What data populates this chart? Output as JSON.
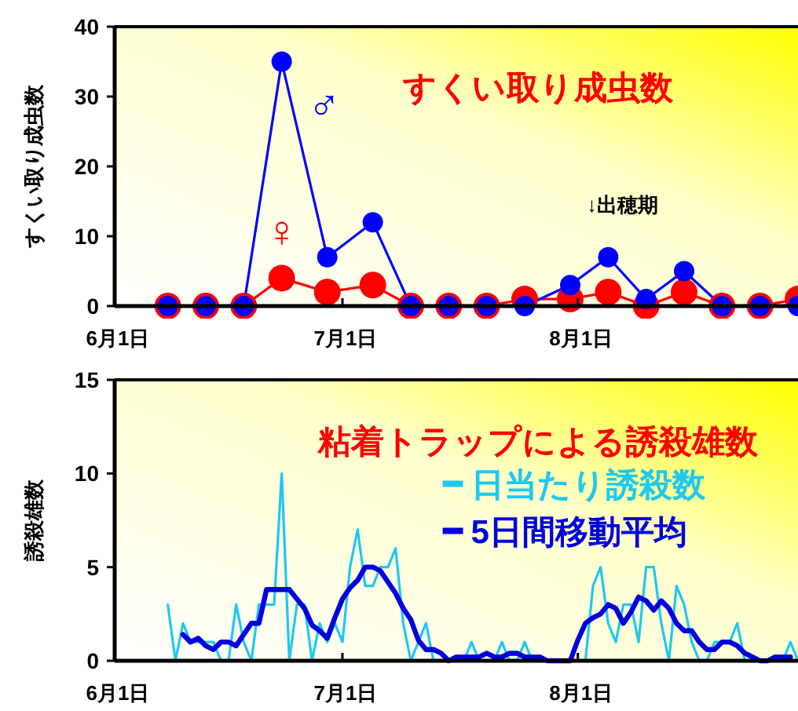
{
  "chart_data": [
    {
      "type": "line",
      "title": "すくい取り成虫数",
      "ylabel": "すくい取り成虫数",
      "marker": "circle",
      "line_style": "solid",
      "x": [
        "--06-08",
        "--06-13",
        "--06-18",
        "--06-23",
        "--06-29",
        "--07-05",
        "--07-10",
        "--07-15",
        "--07-20",
        "--07-25",
        "--07-31",
        "--08-05",
        "--08-10",
        "--08-15",
        "--08-20",
        "--08-25",
        "--08-30"
      ],
      "series": [
        {
          "name": "♀",
          "color": "#ff0000",
          "values": [
            0,
            0,
            0,
            4,
            2,
            3,
            0,
            0,
            0,
            1,
            1,
            2,
            0,
            2,
            0,
            0,
            1
          ]
        },
        {
          "name": "♂",
          "color": "#0000ff",
          "values": [
            0,
            0,
            0,
            35,
            7,
            12,
            0,
            0,
            0,
            0,
            3,
            7,
            1,
            5,
            0,
            0,
            0
          ]
        }
      ],
      "annotations": [
        "↓出穂期"
      ],
      "xlim": [
        "--06-01",
        "--08-30"
      ],
      "xticks": [
        {
          "value": "--06-01",
          "label": "6月1日"
        },
        {
          "value": "--07-01",
          "label": "7月1日"
        },
        {
          "value": "--08-01",
          "label": "8月1日"
        }
      ],
      "ylim": [
        0,
        40
      ],
      "yticks": [
        0,
        10,
        20,
        30,
        40
      ]
    },
    {
      "type": "line",
      "title": "粘着トラップによる誘殺雄数",
      "ylabel": "誘殺雄数",
      "marker": "none",
      "line_style": "solid",
      "legend": "top right",
      "series": [
        {
          "name": "日当たり誘殺数",
          "color": "#1ec8f0",
          "x": [
            "--06-08",
            "--06-09",
            "--06-10",
            "--06-11",
            "--06-12",
            "--06-13",
            "--06-14",
            "--06-15",
            "--06-16",
            "--06-17",
            "--06-18",
            "--06-19",
            "--06-20",
            "--06-21",
            "--06-22",
            "--06-23",
            "--06-24",
            "--06-25",
            "--06-26",
            "--06-27",
            "--06-28",
            "--06-29",
            "--06-30",
            "--07-01",
            "--07-02",
            "--07-03",
            "--07-04",
            "--07-05",
            "--07-06",
            "--07-07",
            "--07-08",
            "--07-09",
            "--07-10",
            "--07-11",
            "--07-12",
            "--07-13",
            "--07-14",
            "--07-15",
            "--07-16",
            "--07-17",
            "--07-18",
            "--07-19",
            "--07-20",
            "--07-21",
            "--07-22",
            "--07-23",
            "--07-24",
            "--07-25",
            "--07-26",
            "--07-27",
            "--07-28",
            "--07-29",
            "--07-30",
            "--07-31",
            "--08-01",
            "--08-02",
            "--08-03",
            "--08-04",
            "--08-05",
            "--08-06",
            "--08-07",
            "--08-08",
            "--08-09",
            "--08-10",
            "--08-11",
            "--08-12",
            "--08-13",
            "--08-14",
            "--08-15",
            "--08-16",
            "--08-17",
            "--08-18",
            "--08-19",
            "--08-20",
            "--08-21",
            "--08-22",
            "--08-23",
            "--08-24",
            "--08-25",
            "--08-26",
            "--08-27",
            "--08-28",
            "--08-29",
            "--08-30"
          ],
          "values": [
            3,
            0,
            2,
            1,
            1,
            1,
            1,
            0,
            0,
            3,
            1,
            0,
            3,
            3,
            3,
            10,
            0,
            3,
            3,
            0,
            2,
            1,
            2,
            1,
            5,
            7,
            4,
            4,
            5,
            5,
            6,
            2,
            0,
            1,
            2,
            0,
            0,
            0,
            0,
            0,
            1,
            0,
            0,
            0,
            1,
            0,
            0,
            1,
            0,
            0,
            0,
            0,
            0,
            0,
            0,
            0,
            4,
            5,
            2,
            1,
            3,
            3,
            1,
            5,
            5,
            2,
            0,
            4,
            3,
            1,
            0,
            0,
            1,
            1,
            1,
            2,
            0,
            0,
            0,
            0,
            0,
            0,
            1,
            0
          ]
        },
        {
          "name": "5日間移動平均",
          "color": "#0000dc",
          "x": [
            "--06-10",
            "--06-11",
            "--06-12",
            "--06-13",
            "--06-14",
            "--06-15",
            "--06-16",
            "--06-17",
            "--06-18",
            "--06-19",
            "--06-20",
            "--06-21",
            "--06-22",
            "--06-23",
            "--06-24",
            "--06-25",
            "--06-26",
            "--06-27",
            "--06-28",
            "--06-29",
            "--06-30",
            "--07-01",
            "--07-02",
            "--07-03",
            "--07-04",
            "--07-05",
            "--07-06",
            "--07-07",
            "--07-08",
            "--07-09",
            "--07-10",
            "--07-11",
            "--07-12",
            "--07-13",
            "--07-14",
            "--07-15",
            "--07-16",
            "--07-17",
            "--07-18",
            "--07-19",
            "--07-20",
            "--07-21",
            "--07-22",
            "--07-23",
            "--07-24",
            "--07-25",
            "--07-26",
            "--07-27",
            "--07-28",
            "--07-29",
            "--07-30",
            "--07-31",
            "--08-01",
            "--08-02",
            "--08-03",
            "--08-04",
            "--08-05",
            "--08-06",
            "--08-07",
            "--08-08",
            "--08-09",
            "--08-10",
            "--08-11",
            "--08-12",
            "--08-13",
            "--08-14",
            "--08-15",
            "--08-16",
            "--08-17",
            "--08-18",
            "--08-19",
            "--08-20",
            "--08-21",
            "--08-22",
            "--08-23",
            "--08-24",
            "--08-25",
            "--08-26",
            "--08-27",
            "--08-28",
            "--08-29"
          ],
          "values": [
            1.4,
            1.0,
            1.2,
            0.8,
            0.6,
            1.0,
            1.0,
            0.8,
            1.4,
            2.0,
            2.0,
            3.8,
            3.8,
            3.8,
            3.8,
            3.3,
            2.8,
            1.9,
            1.6,
            1.2,
            2.3,
            3.3,
            3.9,
            4.3,
            5.0,
            5.0,
            4.8,
            4.2,
            3.6,
            2.8,
            2.2,
            1.1,
            0.6,
            0.6,
            0.4,
            0,
            0.2,
            0.2,
            0.2,
            0.2,
            0.4,
            0.2,
            0.2,
            0.4,
            0.4,
            0.2,
            0.2,
            0.2,
            0,
            0,
            0,
            0,
            1.1,
            2.0,
            2.3,
            2.5,
            3.0,
            2.8,
            2.0,
            2.6,
            3.4,
            3.2,
            2.7,
            3.2,
            2.8,
            2.0,
            1.6,
            1.6,
            1.0,
            0.6,
            0.6,
            1.0,
            1.0,
            0.8,
            0.4,
            0.2,
            0,
            0,
            0.2,
            0.2,
            0.2
          ]
        }
      ],
      "xlim": [
        "--06-01",
        "--08-30"
      ],
      "xticks": [
        {
          "value": "--06-01",
          "label": "6月1日"
        },
        {
          "value": "--07-01",
          "label": "7月1日"
        },
        {
          "value": "--08-01",
          "label": "8月1日"
        }
      ],
      "ylim": [
        0,
        15
      ],
      "yticks": [
        0,
        5,
        10,
        15
      ]
    }
  ]
}
